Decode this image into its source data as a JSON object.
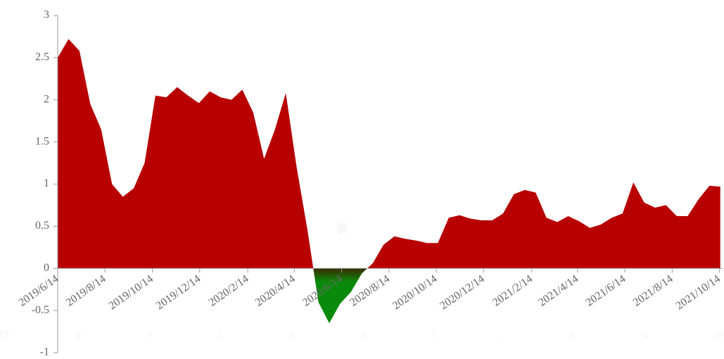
{
  "chart_data": {
    "type": "area",
    "watermark": {
      "logo": "我的钢铁",
      "text": "Mysteel.com"
    },
    "x": [
      "2019/6/14",
      "2019/6/28",
      "2019/7/12",
      "2019/7/26",
      "2019/8/9",
      "2019/8/23",
      "2019/9/6",
      "2019/9/20",
      "2019/10/4",
      "2019/10/18",
      "2019/11/1",
      "2019/11/15",
      "2019/11/29",
      "2019/12/13",
      "2019/12/27",
      "2020/1/10",
      "2020/1/24",
      "2020/2/7",
      "2020/2/21",
      "2020/3/6",
      "2020/3/20",
      "2020/4/3",
      "2020/4/17",
      "2020/5/1",
      "2020/5/15",
      "2020/5/29",
      "2020/6/12",
      "2020/6/26",
      "2020/7/10",
      "2020/7/24",
      "2020/8/7",
      "2020/8/21",
      "2020/9/4",
      "2020/9/18",
      "2020/10/2",
      "2020/10/16",
      "2020/10/30",
      "2020/11/13",
      "2020/11/27",
      "2020/12/11",
      "2020/12/25",
      "2021/1/8",
      "2021/1/22",
      "2021/2/5",
      "2021/2/19",
      "2021/3/5",
      "2021/3/19",
      "2021/4/2",
      "2021/4/16",
      "2021/4/30",
      "2021/5/14",
      "2021/5/28",
      "2021/6/11",
      "2021/6/25",
      "2021/7/9",
      "2021/7/23",
      "2021/8/6",
      "2021/8/20",
      "2021/9/3",
      "2021/9/17",
      "2021/10/1",
      "2021/10/15"
    ],
    "series": [
      {
        "positive_color": "#b80000",
        "negative_color": "#0a8a0a",
        "values": [
          2.5,
          2.72,
          2.58,
          1.95,
          1.65,
          1.0,
          0.85,
          0.95,
          1.25,
          2.05,
          2.03,
          2.15,
          2.05,
          1.96,
          2.1,
          2.03,
          2.0,
          2.12,
          1.85,
          1.3,
          1.65,
          2.08,
          1.2,
          0.45,
          -0.4,
          -0.65,
          -0.42,
          -0.28,
          -0.06,
          0.06,
          0.28,
          0.38,
          0.35,
          0.33,
          0.3,
          0.3,
          0.6,
          0.63,
          0.59,
          0.57,
          0.57,
          0.65,
          0.88,
          0.93,
          0.9,
          0.6,
          0.55,
          0.62,
          0.56,
          0.48,
          0.52,
          0.6,
          0.65,
          1.02,
          0.78,
          0.72,
          0.75,
          0.62,
          0.62,
          0.82,
          0.98,
          0.97
        ]
      }
    ],
    "xlim": [
      "2019/6/14",
      "2021/10/18"
    ],
    "xticks": [
      "2019/6/14",
      "2019/8/14",
      "2019/10/14",
      "2019/12/14",
      "2020/2/14",
      "2020/4/14",
      "2020/6/14",
      "2020/8/14",
      "2020/10/14",
      "2020/12/14",
      "2021/2/14",
      "2021/4/14",
      "2021/6/14",
      "2021/8/14",
      "2021/10/14"
    ],
    "ylim": [
      -1,
      3
    ],
    "yticks": [
      -1,
      -0.5,
      0,
      0.5,
      1,
      1.5,
      2,
      2.5,
      3
    ]
  }
}
